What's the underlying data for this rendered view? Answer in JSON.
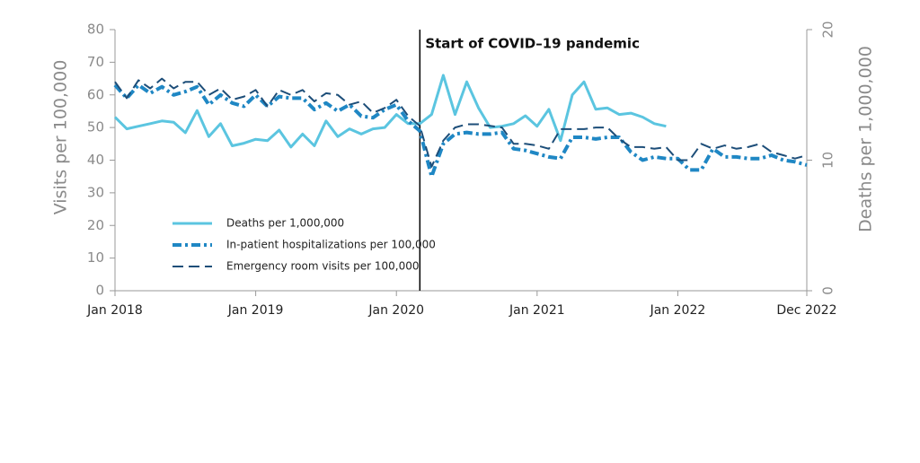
{
  "chart_data": {
    "type": "line",
    "x": [
      "Jan 2018",
      "Feb 2018",
      "Mar 2018",
      "Apr 2018",
      "May 2018",
      "Jun 2018",
      "Jul 2018",
      "Aug 2018",
      "Sep 2018",
      "Oct 2018",
      "Nov 2018",
      "Dec 2018",
      "Jan 2019",
      "Feb 2019",
      "Mar 2019",
      "Apr 2019",
      "May 2019",
      "Jun 2019",
      "Jul 2019",
      "Aug 2019",
      "Sep 2019",
      "Oct 2019",
      "Nov 2019",
      "Dec 2019",
      "Jan 2020",
      "Feb 2020",
      "Mar 2020",
      "Apr 2020",
      "May 2020",
      "Jun 2020",
      "Jul 2020",
      "Aug 2020",
      "Sep 2020",
      "Oct 2020",
      "Nov 2020",
      "Dec 2020",
      "Jan 2021",
      "Feb 2021",
      "Mar 2021",
      "Apr 2021",
      "May 2021",
      "Jun 2021",
      "Jul 2021",
      "Aug 2021",
      "Sep 2021",
      "Oct 2021",
      "Nov 2021",
      "Dec 2021",
      "Jan 2022",
      "Feb 2022",
      "Mar 2022",
      "Apr 2022",
      "May 2022",
      "Jun 2022",
      "Jul 2022",
      "Aug 2022",
      "Sep 2022",
      "Oct 2022",
      "Nov 2022",
      "Dec 2022"
    ],
    "xticks": [
      "Jan 2018",
      "Jan 2019",
      "Jan 2020",
      "Jan 2021",
      "Jan 2022",
      "Dec 2022"
    ],
    "ylabel": "Visits per 100,000",
    "y2label": "Deaths per 1,000,000",
    "ylim": [
      0,
      80
    ],
    "yticks": [
      0,
      10,
      20,
      30,
      40,
      50,
      60,
      70,
      80
    ],
    "y2lim": [
      0,
      20
    ],
    "y2ticks": [
      0,
      10,
      20
    ],
    "annotation": {
      "text": "Start of COVID–19 pandemic",
      "x": "Mar 2020"
    },
    "legend": "lower left",
    "series": [
      {
        "name": "Deaths per 1,000,000",
        "color": "#5bc5e0",
        "dash": "solid",
        "axis": "y2",
        "values": [
          13.3,
          12.4,
          12.6,
          12.8,
          13.0,
          12.9,
          12.1,
          13.8,
          11.8,
          12.8,
          11.1,
          11.3,
          11.6,
          11.5,
          12.3,
          11.0,
          12.0,
          11.1,
          13.0,
          11.8,
          12.4,
          12.0,
          12.4,
          12.5,
          13.5,
          12.8,
          12.8,
          13.5,
          16.5,
          13.5,
          16.0,
          14.0,
          12.5,
          12.6,
          12.8,
          13.4,
          12.6,
          13.9,
          11.5,
          15.0,
          16.0,
          13.9,
          14.0,
          13.5,
          13.6,
          13.3,
          12.8,
          12.6,
          null,
          null,
          null,
          null,
          null,
          null,
          null,
          null,
          null,
          null,
          null,
          null
        ]
      },
      {
        "name": "In-patient hospitalizations per 100,000",
        "color": "#1f87c4",
        "dash": "dashdot",
        "values": [
          63,
          59,
          63,
          60.5,
          62.5,
          60,
          61,
          62.5,
          57,
          60,
          57.5,
          56.5,
          60,
          56.5,
          59.5,
          59,
          59,
          55.5,
          57.5,
          55,
          57,
          53.5,
          53,
          55.5,
          57,
          52,
          49,
          35,
          45,
          48,
          48.5,
          48,
          48,
          48.5,
          43.5,
          43,
          42,
          41,
          40.5,
          47,
          47,
          46.5,
          47,
          47,
          42.5,
          40,
          41,
          40.5,
          40.5,
          37,
          37,
          43.5,
          41,
          41,
          40.5,
          40.5,
          41.5,
          40,
          39.5,
          38.5
        ]
      },
      {
        "name": "Emergency room visits per 100,000",
        "color": "#1d4e79",
        "dash": "dashed",
        "values": [
          64,
          59,
          64.5,
          62,
          65,
          62,
          64,
          64,
          60,
          62,
          58.5,
          59.5,
          61.5,
          56.5,
          61.5,
          60,
          61.5,
          58,
          60.5,
          60,
          57,
          58,
          54.5,
          56,
          58.5,
          53.5,
          50.5,
          38,
          46,
          50,
          51,
          51,
          50.5,
          50,
          45,
          45,
          44.5,
          43.5,
          49.5,
          49.5,
          49.5,
          50,
          50,
          46.5,
          44,
          44,
          43.5,
          44,
          40,
          40,
          45,
          43.5,
          44.5,
          43.5,
          44,
          45,
          42.5,
          41.5,
          40.5,
          41.5
        ]
      }
    ]
  }
}
